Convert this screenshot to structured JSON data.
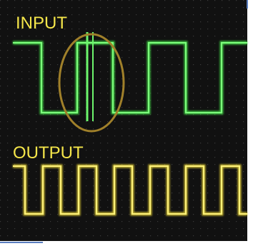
{
  "labels": {
    "input": "INPUT",
    "output": "OUTPUT"
  }
}
